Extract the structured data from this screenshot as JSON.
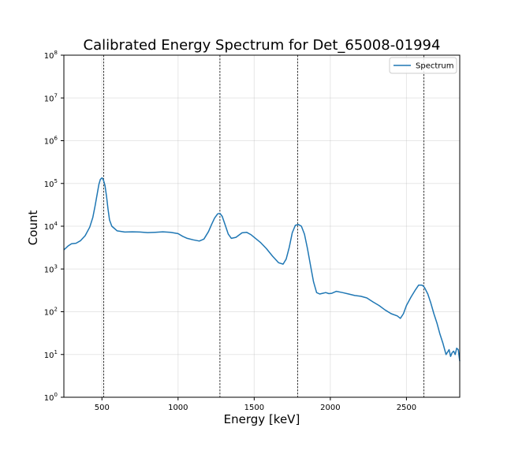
{
  "chart_data": {
    "type": "line",
    "title": "Calibrated Energy Spectrum for Det_65008-01994",
    "xlabel": "Energy [keV]",
    "ylabel": "Count",
    "xlim": [
      250,
      2850
    ],
    "ylim": [
      1,
      100000000
    ],
    "yscale": "log",
    "grid": true,
    "legend_position": "top-right",
    "x_ticks": [
      500,
      1000,
      1500,
      2000,
      2500
    ],
    "x_tick_labels": [
      "500",
      "1000",
      "1500",
      "2000",
      "2500"
    ],
    "y_ticks": [
      1,
      10,
      100,
      1000,
      10000,
      100000,
      1000000,
      10000000,
      100000000
    ],
    "y_tick_base": "10",
    "y_tick_exponents": [
      "0",
      "1",
      "2",
      "3",
      "4",
      "5",
      "6",
      "7",
      "8"
    ],
    "reference_lines_x": [
      511,
      1275,
      1785,
      2615
    ],
    "colors": {
      "series": "#1f77b4",
      "grid": "#b0b0b0",
      "reference_line": "#000000"
    },
    "series": [
      {
        "name": "Spectrum",
        "x": [
          250,
          280,
          300,
          330,
          360,
          390,
          420,
          440,
          455,
          470,
          480,
          490,
          500,
          505,
          510,
          520,
          530,
          540,
          550,
          565,
          580,
          600,
          650,
          700,
          750,
          800,
          850,
          900,
          950,
          1000,
          1030,
          1060,
          1100,
          1140,
          1170,
          1200,
          1220,
          1240,
          1260,
          1275,
          1290,
          1310,
          1330,
          1350,
          1380,
          1420,
          1450,
          1480,
          1500,
          1540,
          1580,
          1620,
          1660,
          1690,
          1710,
          1730,
          1750,
          1770,
          1790,
          1810,
          1830,
          1850,
          1870,
          1890,
          1910,
          1930,
          1950,
          1970,
          1990,
          2010,
          2040,
          2080,
          2120,
          2160,
          2200,
          2240,
          2280,
          2320,
          2360,
          2400,
          2440,
          2460,
          2480,
          2500,
          2530,
          2560,
          2580,
          2600,
          2610,
          2620,
          2640,
          2660,
          2680,
          2700,
          2720,
          2740,
          2760,
          2780,
          2790,
          2800,
          2810,
          2820,
          2830,
          2840,
          2850
        ],
        "y": [
          2800,
          3500,
          3900,
          4000,
          4600,
          6000,
          9500,
          16000,
          30000,
          60000,
          95000,
          125000,
          135000,
          130000,
          120000,
          90000,
          50000,
          25000,
          14000,
          10000,
          9000,
          7800,
          7300,
          7400,
          7300,
          7100,
          7200,
          7400,
          7200,
          6700,
          5800,
          5200,
          4800,
          4500,
          5000,
          7500,
          11000,
          15500,
          19500,
          20000,
          17000,
          10500,
          6500,
          5200,
          5500,
          7000,
          7200,
          6300,
          5500,
          4200,
          3000,
          2000,
          1400,
          1300,
          1700,
          3200,
          7000,
          10500,
          11000,
          10000,
          6500,
          3000,
          1200,
          500,
          280,
          260,
          270,
          280,
          265,
          270,
          300,
          280,
          260,
          240,
          230,
          210,
          170,
          140,
          110,
          90,
          80,
          70,
          90,
          140,
          220,
          330,
          420,
          420,
          400,
          360,
          260,
          160,
          90,
          55,
          30,
          18,
          10,
          13,
          9,
          11,
          12,
          10,
          14,
          13,
          7
        ]
      }
    ]
  }
}
